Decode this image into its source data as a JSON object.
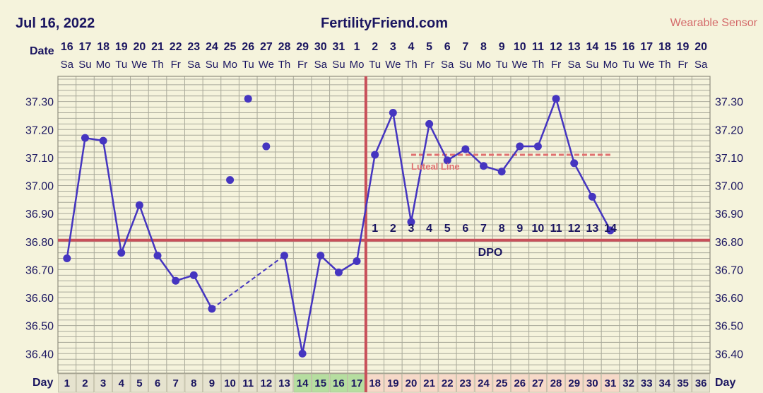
{
  "header": {
    "date": "Jul 16, 2022",
    "site": "FertilityFriend.com",
    "source": "Wearable Sensor"
  },
  "labels": {
    "date_row": "Date",
    "day_row": "Day",
    "dpo": "DPO",
    "luteal_line": "Luteal Line"
  },
  "colors": {
    "background": "#f5f3dc",
    "grid": "#a9a99a",
    "line": "#4535c0",
    "coverline": "#c8505a",
    "luteal": "#e07070",
    "title": "#1a1560",
    "source": "#d46a6a",
    "fertile_cell": "#b6dea0",
    "luteal_cell": "#f6d9c8",
    "day_cell": "#e6e3cf"
  },
  "chart_data": {
    "type": "line",
    "title": "",
    "xlabel": "Day",
    "ylabel": "",
    "ylim": [
      36.33,
      37.39
    ],
    "y_ticks": [
      "37.30",
      "37.20",
      "37.10",
      "37.00",
      "36.90",
      "36.80",
      "36.70",
      "36.60",
      "36.50",
      "36.40"
    ],
    "grid": true,
    "dates": [
      "16",
      "17",
      "18",
      "19",
      "20",
      "21",
      "22",
      "23",
      "24",
      "25",
      "26",
      "27",
      "28",
      "29",
      "30",
      "31",
      "1",
      "2",
      "3",
      "4",
      "5",
      "6",
      "7",
      "8",
      "9",
      "10",
      "11",
      "12",
      "13",
      "14",
      "15",
      "16",
      "17",
      "18",
      "19",
      "20"
    ],
    "weekdays": [
      "Sa",
      "Su",
      "Mo",
      "Tu",
      "We",
      "Th",
      "Fr",
      "Sa",
      "Su",
      "Mo",
      "Tu",
      "We",
      "Th",
      "Fr",
      "Sa",
      "Su",
      "Mo",
      "Tu",
      "We",
      "Th",
      "Fr",
      "Sa",
      "Su",
      "Mo",
      "Tu",
      "We",
      "Th",
      "Fr",
      "Sa",
      "Su",
      "Mo",
      "Tu",
      "We",
      "Th",
      "Fr",
      "Sa"
    ],
    "cycle_days": [
      1,
      2,
      3,
      4,
      5,
      6,
      7,
      8,
      9,
      10,
      11,
      12,
      13,
      14,
      15,
      16,
      17,
      18,
      19,
      20,
      21,
      22,
      23,
      24,
      25,
      26,
      27,
      28,
      29,
      30,
      31,
      32,
      33,
      34,
      35,
      36
    ],
    "fertile_days": [
      14,
      15,
      16,
      17
    ],
    "luteal_days": [
      18,
      19,
      20,
      21,
      22,
      23,
      24,
      25,
      26,
      27,
      28,
      29,
      30,
      31
    ],
    "temperatures": [
      36.74,
      37.17,
      37.16,
      36.76,
      36.93,
      36.75,
      36.66,
      36.68,
      36.56,
      37.02,
      37.31,
      37.14,
      36.75,
      36.4,
      36.75,
      36.69,
      36.73,
      37.11,
      37.26,
      36.87,
      37.22,
      37.09,
      37.13,
      37.07,
      37.05,
      37.14,
      37.14,
      37.31,
      37.08,
      36.96,
      36.84,
      null,
      null,
      null,
      null,
      null
    ],
    "discarded_days": [
      10,
      11,
      12
    ],
    "dashed_segments": [
      [
        9,
        13
      ]
    ],
    "coverline": 36.805,
    "ovulation_day": 17,
    "luteal_line": {
      "value": 37.11,
      "from_day": 20,
      "to_day": 31
    },
    "dpo_labels": [
      "1",
      "2",
      "3",
      "4",
      "5",
      "6",
      "7",
      "8",
      "9",
      "10",
      "11",
      "12",
      "13",
      "14"
    ],
    "dpo_start_day": 18
  }
}
